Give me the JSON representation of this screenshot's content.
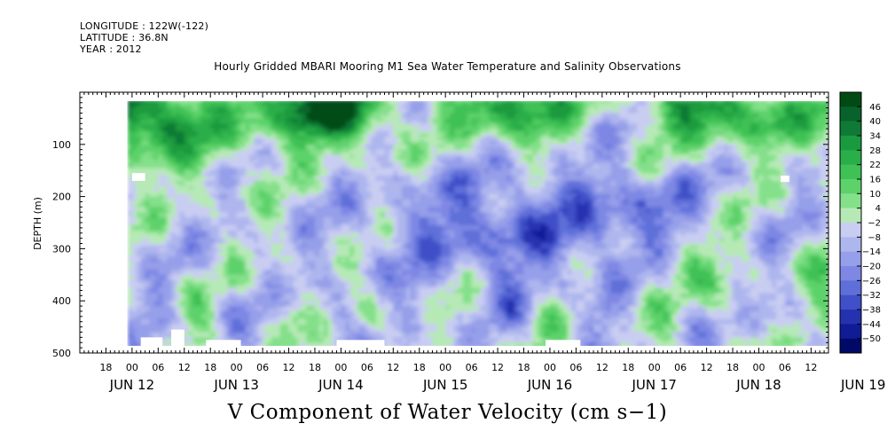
{
  "header": {
    "longitude": "LONGITUDE : 122W(-122)",
    "latitude": "LATITUDE : 36.8N",
    "year": "YEAR : 2012"
  },
  "title": "Hourly Gridded MBARI Mooring M1 Sea Water Temperature and Salinity Observations",
  "bottom_title": "V Component of Water Velocity (cm s−1)",
  "chart_data": {
    "type": "heatmap",
    "title": "Hourly Gridded MBARI Mooring M1 Sea Water Temperature and Salinity Observations",
    "variable": "V Component of Water Velocity (cm s−1)",
    "ylabel": "DEPTH (m)",
    "ylim": [
      0,
      500
    ],
    "y_inverted": true,
    "y_ticks": [
      100,
      200,
      300,
      400,
      500
    ],
    "x_start": "2012-06-12T12:00",
    "x_end": "2012-06-19T16:00",
    "data_start": "2012-06-12T23:00",
    "x_hour_ticks": [
      "18",
      "00",
      "06",
      "12",
      "18",
      "00",
      "06",
      "12",
      "18",
      "00",
      "06",
      "12",
      "18",
      "00",
      "06",
      "12",
      "18",
      "00",
      "06",
      "12",
      "18",
      "00",
      "06",
      "12",
      "18",
      "00",
      "06",
      "12",
      "18",
      "00",
      "06",
      "12"
    ],
    "x_day_labels": [
      "JUN 12",
      "JUN 13",
      "JUN 14",
      "JUN 15",
      "JUN 16",
      "JUN 17",
      "JUN 18",
      "JUN 19"
    ],
    "colorbar": {
      "labels": [
        "46",
        "40",
        "34",
        "28",
        "22",
        "16",
        "10",
        "4",
        "−2",
        "−8",
        "−14",
        "−20",
        "−26",
        "−32",
        "−38",
        "−44",
        "−50"
      ],
      "colors": [
        "#004b14",
        "#07632b",
        "#0f7a35",
        "#1a9a3e",
        "#2aae49",
        "#3fc155",
        "#5dd26b",
        "#84e08a",
        "#b6e9b6",
        "#c9cdf2",
        "#aeb6ee",
        "#969fe9",
        "#7e88e4",
        "#5f6fd9",
        "#3f50c8",
        "#2532b0",
        "#0f1c96",
        "#000a66"
      ]
    },
    "missing_blocks_hours": [
      [
        26,
        5
      ],
      [
        36,
        10
      ],
      [
        48,
        14
      ],
      [
        74,
        16
      ],
      [
        142,
        8
      ],
      [
        254,
        4
      ]
    ],
    "surface_depth_m": 15,
    "summary": [
      {
        "period": "JUN 13 00 - JUN 14 12",
        "depth": "20-150",
        "v_range": [
          16,
          46
        ]
      },
      {
        "period": "JUN 15 00 - JUN 15 12",
        "depth": "20-100",
        "v_range": [
          28,
          46
        ]
      },
      {
        "period": "JUN 16 00 - JUN 17 18",
        "depth": "150-350",
        "v_range": [
          -32,
          -14
        ]
      },
      {
        "period": "JUN 17 06 - JUN 18 00",
        "depth": "250-400",
        "v_range": [
          4,
          16
        ]
      },
      {
        "period": "JUN 18 06 - JUN 19 12",
        "depth": "20-150",
        "v_range": [
          10,
          28
        ]
      }
    ]
  }
}
